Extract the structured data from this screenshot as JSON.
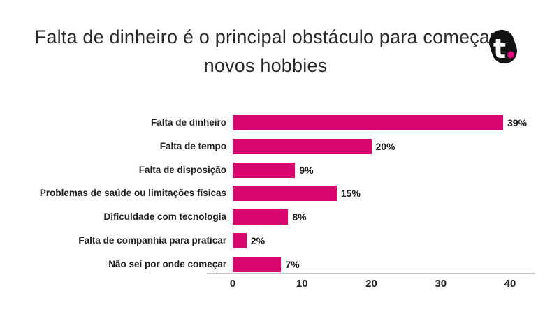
{
  "header": {
    "title": "Falta de dinheiro é o principal obstáculo para começar novos hobbies",
    "logo": {
      "letter": "t",
      "dot": "."
    }
  },
  "chart_data": {
    "type": "bar",
    "orientation": "horizontal",
    "title": "Falta de dinheiro é o principal obstáculo para começar novos hobbies",
    "categories": [
      "Falta de dinheiro",
      "Falta de tempo",
      "Falta de disposição",
      "Problemas de saúde ou limitações físicas",
      "Dificuldade com tecnologia",
      "Falta de companhia para praticar",
      "Não sei por onde começar"
    ],
    "values": [
      39,
      20,
      9,
      15,
      8,
      2,
      7
    ],
    "value_labels": [
      "39%",
      "20%",
      "9%",
      "15%",
      "8%",
      "2%",
      "7%"
    ],
    "xlabel": "",
    "ylabel": "",
    "xlim": [
      0,
      43
    ],
    "x_ticks": [
      0,
      10,
      20,
      30,
      40
    ],
    "grid": false,
    "legend": "none",
    "bar_color": "#d9066f"
  },
  "colors": {
    "background": "#ffffff",
    "bar": "#d9066f",
    "text": "#26282b",
    "axis_line": "#c7c7c7",
    "logo_black": "#131313",
    "logo_dot_pink": "#e20880"
  }
}
